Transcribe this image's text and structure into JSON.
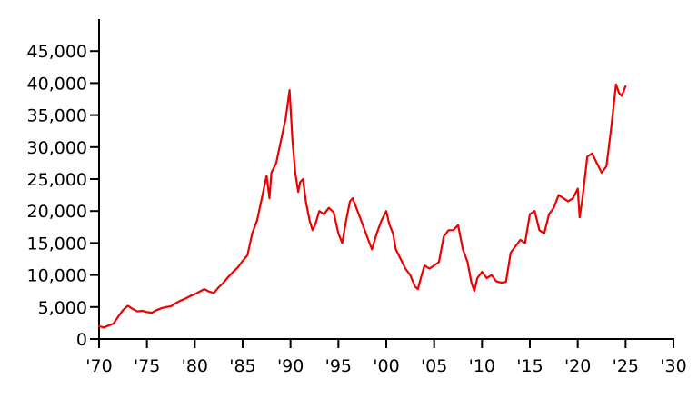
{
  "chart_data": {
    "type": "line",
    "title": "",
    "xlabel": "",
    "ylabel": "",
    "xlim": [
      1970,
      2030
    ],
    "ylim": [
      0,
      50000
    ],
    "x_ticks": [
      1970,
      1975,
      1980,
      1985,
      1990,
      1995,
      2000,
      2005,
      2010,
      2015,
      2020,
      2025,
      2030
    ],
    "x_tick_labels": [
      "'70",
      "'75",
      "'80",
      "'85",
      "'90",
      "'95",
      "'00",
      "'05",
      "'10",
      "'15",
      "'20",
      "'25",
      "'30"
    ],
    "y_ticks": [
      0,
      5000,
      10000,
      15000,
      20000,
      25000,
      30000,
      35000,
      40000,
      45000
    ],
    "y_tick_labels": [
      "0",
      "5,000",
      "10,000",
      "15,000",
      "20,000",
      "25,000",
      "30,000",
      "35,000",
      "40,000",
      "45,000"
    ],
    "grid": false,
    "series": [
      {
        "color": "#ee0000",
        "x": [
          1970.0,
          1970.5,
          1971.0,
          1971.5,
          1972.0,
          1972.5,
          1973.0,
          1973.5,
          1974.0,
          1974.5,
          1975.0,
          1975.5,
          1976.0,
          1976.5,
          1977.0,
          1977.5,
          1978.0,
          1978.5,
          1979.0,
          1979.5,
          1980.0,
          1980.5,
          1981.0,
          1981.5,
          1982.0,
          1982.5,
          1983.0,
          1983.5,
          1984.0,
          1984.5,
          1985.0,
          1985.5,
          1986.0,
          1986.5,
          1987.0,
          1987.5,
          1987.8,
          1988.0,
          1988.5,
          1989.0,
          1989.5,
          1989.9,
          1990.2,
          1990.5,
          1990.8,
          1991.0,
          1991.3,
          1991.6,
          1992.0,
          1992.3,
          1992.6,
          1993.0,
          1993.5,
          1994.0,
          1994.5,
          1995.0,
          1995.4,
          1995.8,
          1996.2,
          1996.5,
          1997.0,
          1997.5,
          1998.0,
          1998.5,
          1999.0,
          1999.5,
          2000.0,
          2000.3,
          2000.7,
          2001.0,
          2001.5,
          2002.0,
          2002.5,
          2003.0,
          2003.3,
          2003.7,
          2004.0,
          2004.5,
          2005.0,
          2005.5,
          2006.0,
          2006.5,
          2007.0,
          2007.5,
          2008.0,
          2008.5,
          2008.9,
          2009.2,
          2009.5,
          2010.0,
          2010.5,
          2011.0,
          2011.5,
          2012.0,
          2012.5,
          2013.0,
          2013.5,
          2014.0,
          2014.5,
          2015.0,
          2015.5,
          2016.0,
          2016.5,
          2017.0,
          2017.5,
          2018.0,
          2018.5,
          2019.0,
          2019.5,
          2020.0,
          2020.2,
          2020.5,
          2021.0,
          2021.5,
          2022.0,
          2022.5,
          2023.0,
          2023.5,
          2024.0,
          2024.3,
          2024.6,
          2025.0
        ],
        "y": [
          2000,
          1800,
          2100,
          2400,
          3500,
          4500,
          5200,
          4700,
          4300,
          4400,
          4200,
          4100,
          4500,
          4800,
          5000,
          5100,
          5600,
          6000,
          6300,
          6700,
          7000,
          7400,
          7800,
          7400,
          7200,
          8100,
          8800,
          9700,
          10500,
          11200,
          12200,
          13100,
          16500,
          18500,
          22000,
          25500,
          22000,
          26000,
          27500,
          31000,
          34500,
          38900,
          31000,
          26000,
          23000,
          24500,
          25000,
          21500,
          18500,
          17000,
          18000,
          20000,
          19500,
          20500,
          19800,
          16500,
          15000,
          18500,
          21500,
          22000,
          20000,
          18000,
          16000,
          14000,
          16500,
          18500,
          20000,
          18000,
          16500,
          14000,
          12500,
          11000,
          10000,
          8200,
          7800,
          10000,
          11500,
          11000,
          11500,
          12000,
          16000,
          17000,
          17000,
          17800,
          14000,
          12000,
          8800,
          7500,
          9500,
          10500,
          9500,
          10000,
          9000,
          8800,
          8900,
          13500,
          14500,
          15500,
          15000,
          19500,
          20000,
          17000,
          16500,
          19500,
          20500,
          22500,
          22000,
          21500,
          22000,
          23500,
          19000,
          22000,
          28500,
          29000,
          27500,
          26000,
          27000,
          33000,
          39800,
          38500,
          38000,
          39500
        ]
      }
    ]
  }
}
